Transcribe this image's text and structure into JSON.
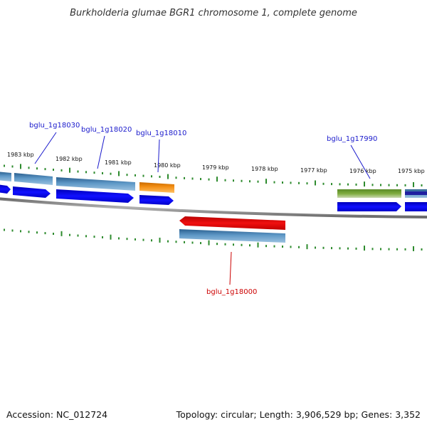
{
  "title": "Burkholderia glumae BGR1 chromosome 1, complete genome",
  "footer": {
    "accession": "Accession: NC_012724",
    "summary": "Topology: circular; Length: 3,906,529 bp; Genes: 3,352"
  },
  "colors": {
    "backbone": "#8c8c8c",
    "tick": "#2e8b2e",
    "cds_blue": "#0000ee",
    "gene_steelblue": "#4f86b4",
    "gene_orange": "#f08c10",
    "gene_red": "#e00000",
    "gene_green": "#6f9a35",
    "label_blue": "#1a1acc",
    "label_red": "#cc0000"
  },
  "ticks": [
    {
      "label": "1983 kbp"
    },
    {
      "label": "1982 kbp"
    },
    {
      "label": "1981 kbp"
    },
    {
      "label": "1980 kbp"
    },
    {
      "label": "1979 kbp"
    },
    {
      "label": "1978 kbp"
    },
    {
      "label": "1977 kbp"
    },
    {
      "label": "1976 kbp"
    },
    {
      "label": "1975 kbp"
    }
  ],
  "gene_labels": [
    {
      "name": "bglu_1g18030",
      "strand": "forward"
    },
    {
      "name": "bglu_1g18020",
      "strand": "forward"
    },
    {
      "name": "bglu_1g18010",
      "strand": "forward"
    },
    {
      "name": "bglu_1g17990",
      "strand": "forward"
    },
    {
      "name": "bglu_1g18000",
      "strand": "reverse"
    }
  ]
}
